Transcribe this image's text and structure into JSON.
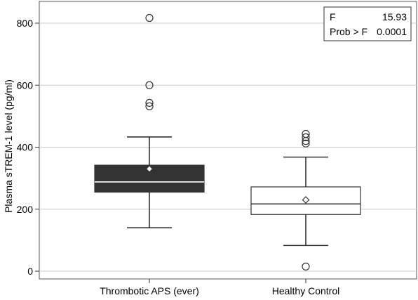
{
  "chart_data": {
    "type": "box",
    "title": "",
    "xlabel": "",
    "ylabel": "Plasma sTREM-1 level (pg/ml)",
    "ylim": [
      -20,
      845
    ],
    "yticks": [
      0,
      200,
      400,
      600,
      800
    ],
    "grid": true,
    "categories": [
      "Thrombotic APS (ever)",
      "Healthy Control"
    ],
    "boxes": [
      {
        "category": "Thrombotic APS (ever)",
        "fill": "#333333",
        "median_color": "#ffffff",
        "whisker_low": 140,
        "q1": 255,
        "median": 288,
        "q3": 342,
        "whisker_high": 433,
        "mean": 330,
        "outliers": [
          532,
          543,
          600,
          817
        ]
      },
      {
        "category": "Healthy Control",
        "fill": "#ffffff",
        "median_color": "#333333",
        "whisker_low": 83,
        "q1": 183,
        "median": 217,
        "q3": 272,
        "whisker_high": 368,
        "mean": 230,
        "outliers": [
          15,
          412,
          420,
          432,
          443
        ]
      }
    ],
    "stats_box": {
      "position": "top-right",
      "rows": [
        {
          "label": "F",
          "value": "15.93"
        },
        {
          "label": "Prob > F",
          "value": "0.0001"
        }
      ]
    }
  }
}
